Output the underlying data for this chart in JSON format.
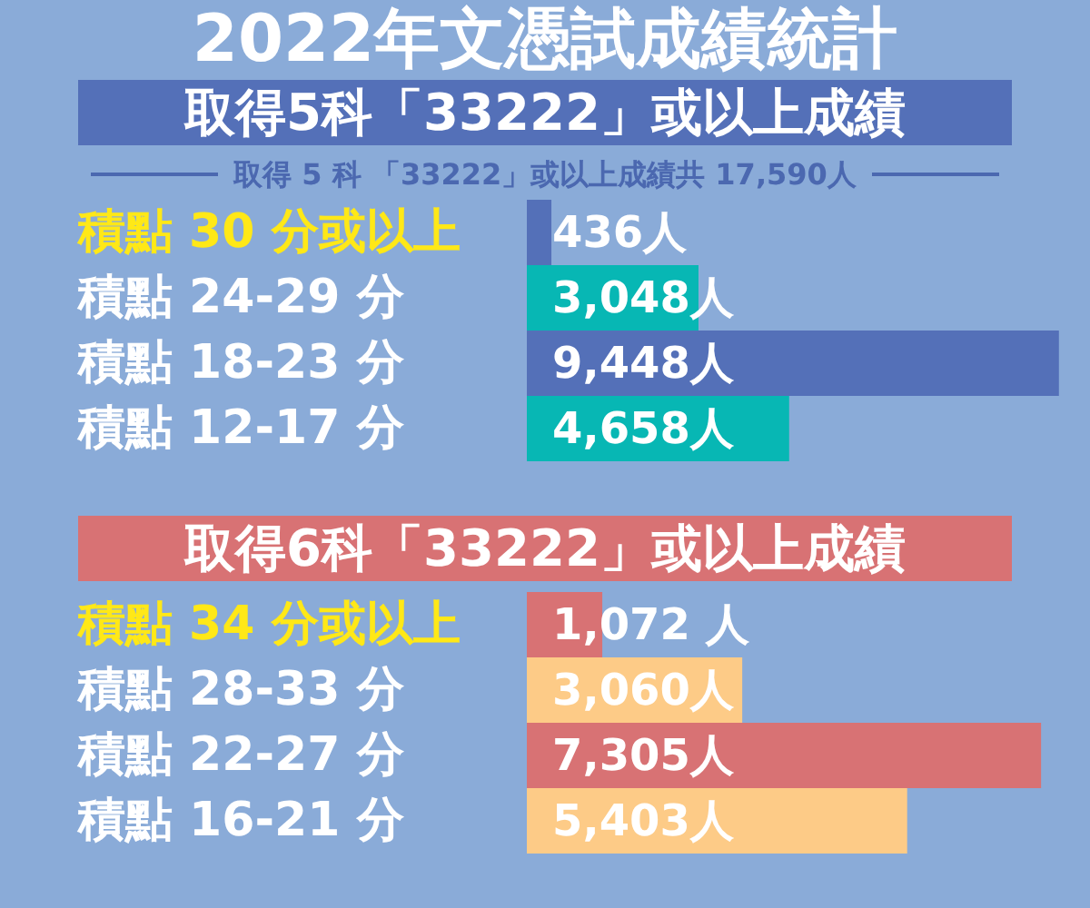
{
  "chart_data": [
    {
      "type": "bar",
      "orientation": "horizontal",
      "title": "2022年文憑試成績統計",
      "subtitle": "取得5科「33222」或以上成績",
      "annotations": [
        "取得 5 科 「33222」或以上成績共 17,590人"
      ],
      "categories": [
        "積點 30 分或以上",
        "積點 24-29 分",
        "積點 18-23 分",
        "積點 12-17 分"
      ],
      "values": [
        436,
        3048,
        9448,
        4658
      ],
      "colors": [
        "#5470b8",
        "#07b7b4",
        "#5470b8",
        "#07b7b4"
      ],
      "value_labels": [
        "436人",
        "3,048人",
        "9,448人",
        "4,658人"
      ]
    },
    {
      "type": "bar",
      "orientation": "horizontal",
      "title": "取得6科「33222」或以上成績",
      "categories": [
        "積點 34 分或以上",
        "積點 28-33 分",
        "積點 22-27 分",
        "積點 16-21 分"
      ],
      "values": [
        1072,
        3060,
        7305,
        5403
      ],
      "colors": [
        "#d87274",
        "#fdcb87",
        "#d87274",
        "#fdcb87"
      ],
      "value_labels": [
        "1,072 人",
        "3,060人",
        "7,305人",
        "5,403人"
      ]
    }
  ]
}
